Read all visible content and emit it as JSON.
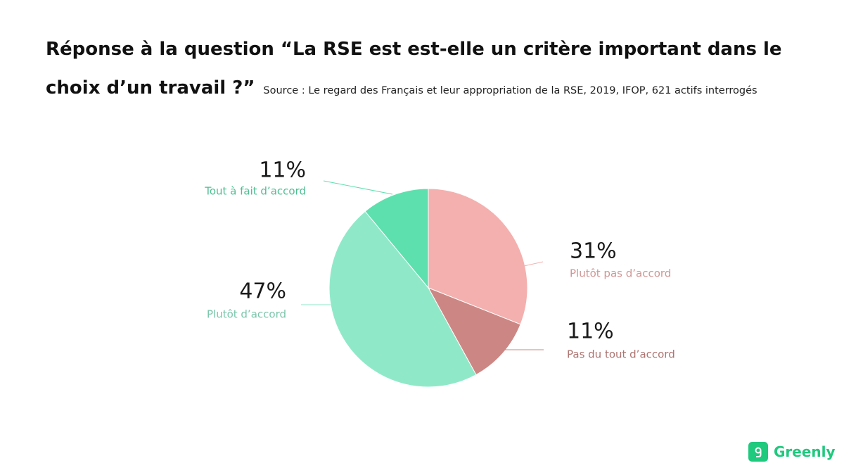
{
  "chart_data": {
    "type": "pie",
    "title": "Réponse à la question “La RSE est est-elle un critère important dans le choix d’un travail ?”",
    "subtitle": "Source : Le regard des Français et leur appropriation de la RSE, 2019, IFOP,  621 actifs interrogés",
    "categories": [
      "Plutôt pas d’accord",
      "Pas du tout d’accord",
      "Plutôt d’accord",
      "Tout à fait d’accord"
    ],
    "values": [
      31,
      11,
      47,
      11
    ],
    "value_labels": [
      "31%",
      "11%",
      "47%",
      "11%"
    ],
    "colors": [
      "#f4b0ae",
      "#cc8784",
      "#8fe9c9",
      "#5de0ad"
    ]
  },
  "brand": "Greenly"
}
